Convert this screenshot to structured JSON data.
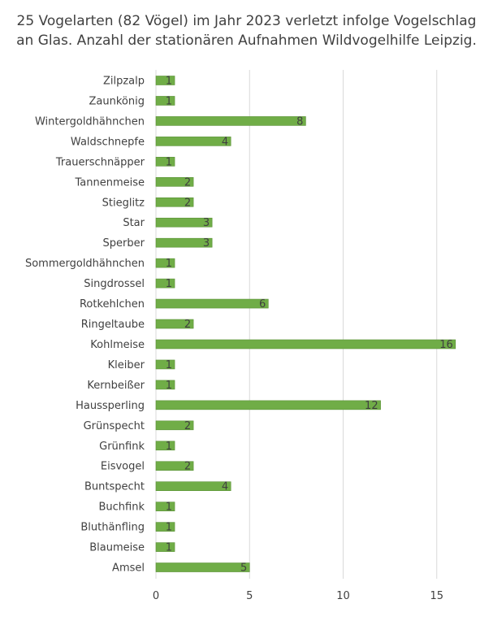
{
  "title_lines": [
    "25 Vogelarten (82 Vögel) im Jahr 2023 verletzt infolge Vogelschlag",
    "an Glas. Anzahl der stationären Aufnahmen Wildvogelhilfe Leipzig."
  ],
  "colors": {
    "bar": "#70ad47",
    "bar_edge": "#5a9136",
    "grid": "#d9d9d9",
    "text": "#404040"
  },
  "chart_data": {
    "type": "bar",
    "orientation": "horizontal",
    "title": "25 Vogelarten (82 Vögel) im Jahr 2023 verletzt infolge Vogelschlag an Glas. Anzahl der stationären Aufnahmen Wildvogelhilfe Leipzig.",
    "categories": [
      "Zilpzalp",
      "Zaunkönig",
      "Wintergoldhähnchen",
      "Waldschnepfe",
      "Trauerschnäpper",
      "Tannenmeise",
      "Stieglitz",
      "Star",
      "Sperber",
      "Sommergoldhähnchen",
      "Singdrossel",
      "Rotkehlchen",
      "Ringeltaube",
      "Kohlmeise",
      "Kleiber",
      "Kernbeißer",
      "Haussperling",
      "Grünspecht",
      "Grünfink",
      "Eisvogel",
      "Buntspecht",
      "Buchfink",
      "Bluthänfling",
      "Blaumeise",
      "Amsel"
    ],
    "values": [
      1,
      1,
      8,
      4,
      1,
      2,
      2,
      3,
      3,
      1,
      1,
      6,
      2,
      16,
      1,
      1,
      12,
      2,
      1,
      2,
      4,
      1,
      1,
      1,
      5
    ],
    "xlim": [
      0,
      17
    ],
    "xticks": [
      0,
      5,
      10,
      15
    ],
    "grid": true,
    "data_labels": true,
    "legend": "none"
  }
}
